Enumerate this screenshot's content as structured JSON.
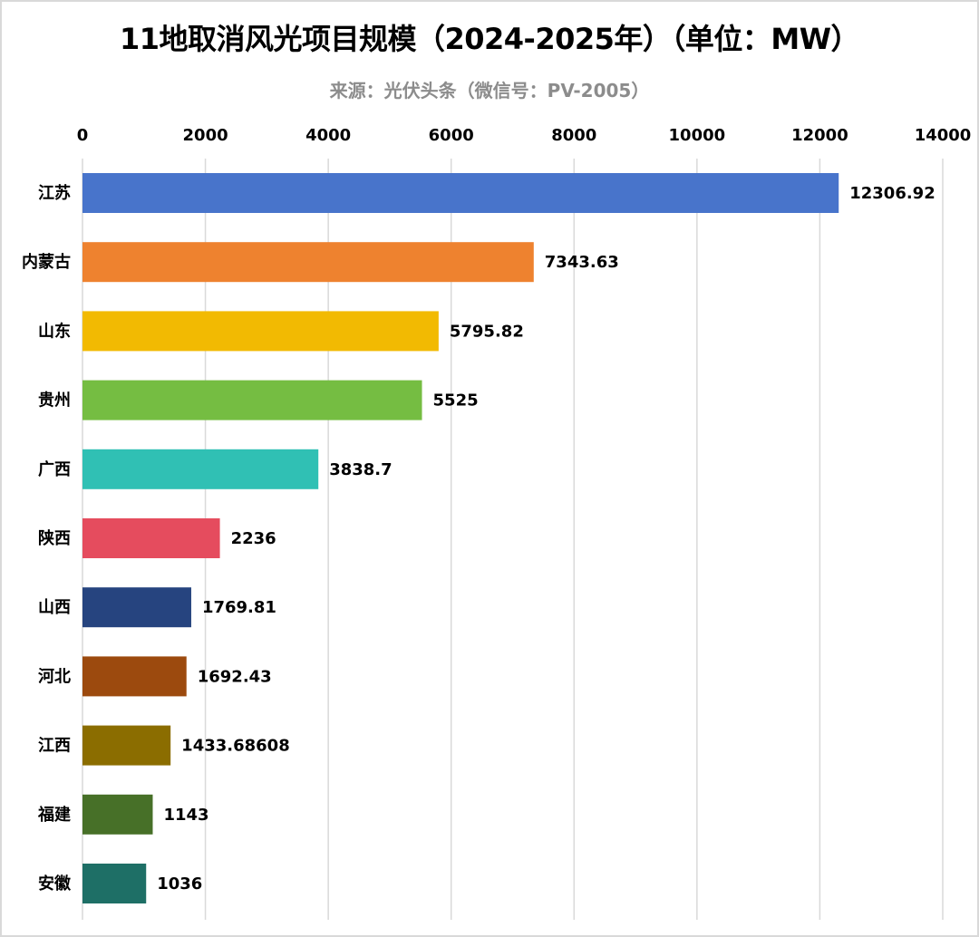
{
  "chart_data": {
    "type": "bar",
    "orientation": "horizontal",
    "title": "11地取消风光项目规模（2024-2025年）（单位：MW）",
    "subtitle": "来源：光伏头条（微信号：PV-2005）",
    "xlabel": "",
    "ylabel": "",
    "xlim": [
      0,
      14000
    ],
    "xticks": [
      "0",
      "2000",
      "4000",
      "6000",
      "8000",
      "10000",
      "12000",
      "14000"
    ],
    "xtick_values": [
      0,
      2000,
      4000,
      6000,
      8000,
      10000,
      12000,
      14000
    ],
    "grid": true,
    "axis_position": "top",
    "categories": [
      "江苏",
      "内蒙古",
      "山东",
      "贵州",
      "广西",
      "陕西",
      "山西",
      "河北",
      "江西",
      "福建",
      "安徽"
    ],
    "values": [
      12306.92,
      7343.63,
      5795.82,
      5525,
      3838.7,
      2236,
      1769.81,
      1692.43,
      1433.68608,
      1143,
      1036
    ],
    "value_labels": [
      "12306.92",
      "7343.63",
      "5795.82",
      "5525",
      "3838.7",
      "2236",
      "1769.81",
      "1692.43",
      "1433.68608",
      "1143",
      "1036"
    ],
    "colors": [
      "#4874CB",
      "#EE822F",
      "#F2BA02",
      "#75BD42",
      "#30C0B4",
      "#E54C5E",
      "#26447F",
      "#9C4A0E",
      "#8B6D00",
      "#477028",
      "#1E6F66"
    ]
  }
}
